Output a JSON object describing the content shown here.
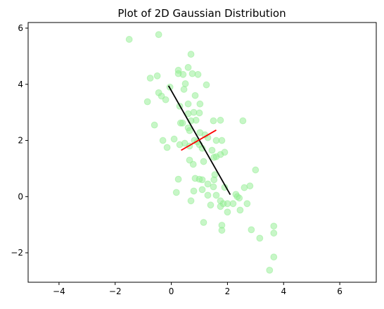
{
  "chart_data": {
    "type": "scatter",
    "title": "Plot of 2D Gaussian Distribution",
    "xlabel": "",
    "ylabel": "",
    "xlim": [
      -5.1,
      7.3
    ],
    "ylim": [
      -3.05,
      6.2
    ],
    "xticks": [
      -4,
      -2,
      0,
      2,
      4,
      6
    ],
    "xtick_labels": [
      "−4",
      "−2",
      "0",
      "2",
      "4",
      "6"
    ],
    "yticks": [
      -2,
      0,
      2,
      4,
      6
    ],
    "ytick_labels": [
      "−2",
      "0",
      "2",
      "4",
      "6"
    ],
    "grid": false,
    "colors": {
      "points": "#90ee90",
      "principal_axis": "#000000",
      "minor_axis": "#ff0000"
    },
    "point_alpha": 0.5,
    "points": [
      [
        -1.5,
        5.6
      ],
      [
        -0.45,
        5.77
      ],
      [
        0.7,
        5.07
      ],
      [
        0.6,
        4.6
      ],
      [
        0.25,
        4.5
      ],
      [
        0.75,
        4.38
      ],
      [
        0.42,
        4.35
      ],
      [
        0.95,
        4.35
      ],
      [
        0.25,
        4.38
      ],
      [
        -0.75,
        4.22
      ],
      [
        -0.5,
        4.3
      ],
      [
        1.25,
        3.98
      ],
      [
        0.5,
        4.02
      ],
      [
        -0.05,
        3.9
      ],
      [
        0.45,
        3.82
      ],
      [
        -0.45,
        3.7
      ],
      [
        -0.35,
        3.58
      ],
      [
        0.85,
        3.6
      ],
      [
        -0.2,
        3.45
      ],
      [
        -0.85,
        3.38
      ],
      [
        0.6,
        3.3
      ],
      [
        0.3,
        3.22
      ],
      [
        1.02,
        3.3
      ],
      [
        0.8,
        3.0
      ],
      [
        1.0,
        2.98
      ],
      [
        0.6,
        2.95
      ],
      [
        0.88,
        2.72
      ],
      [
        0.7,
        2.7
      ],
      [
        1.5,
        2.7
      ],
      [
        1.75,
        2.72
      ],
      [
        2.55,
        2.7
      ],
      [
        -0.6,
        2.55
      ],
      [
        0.33,
        2.62
      ],
      [
        0.4,
        2.62
      ],
      [
        0.6,
        2.45
      ],
      [
        0.65,
        2.35
      ],
      [
        1.02,
        2.28
      ],
      [
        1.2,
        2.2
      ],
      [
        1.3,
        2.1
      ],
      [
        1.6,
        2.0
      ],
      [
        1.8,
        2.0
      ],
      [
        0.1,
        2.05
      ],
      [
        -0.3,
        2.0
      ],
      [
        0.48,
        1.9
      ],
      [
        0.82,
        2.0
      ],
      [
        0.92,
        1.95
      ],
      [
        1.0,
        1.85
      ],
      [
        0.3,
        1.85
      ],
      [
        -0.15,
        1.75
      ],
      [
        0.65,
        1.8
      ],
      [
        1.1,
        1.72
      ],
      [
        1.45,
        1.65
      ],
      [
        1.75,
        1.5
      ],
      [
        1.6,
        1.42
      ],
      [
        1.9,
        1.58
      ],
      [
        1.52,
        1.4
      ],
      [
        0.65,
        1.3
      ],
      [
        0.78,
        1.15
      ],
      [
        1.15,
        1.25
      ],
      [
        1.55,
        0.78
      ],
      [
        0.85,
        0.65
      ],
      [
        1.1,
        0.6
      ],
      [
        1.52,
        0.6
      ],
      [
        1.0,
        0.62
      ],
      [
        0.25,
        0.62
      ],
      [
        1.3,
        0.45
      ],
      [
        1.5,
        0.35
      ],
      [
        1.9,
        0.33
      ],
      [
        2.3,
        0.08
      ],
      [
        2.6,
        0.32
      ],
      [
        2.8,
        0.38
      ],
      [
        3.0,
        0.95
      ],
      [
        1.1,
        0.25
      ],
      [
        0.8,
        0.2
      ],
      [
        0.18,
        0.15
      ],
      [
        1.3,
        0.05
      ],
      [
        1.6,
        0.05
      ],
      [
        2.42,
        -0.05
      ],
      [
        2.35,
        0.0
      ],
      [
        1.75,
        -0.15
      ],
      [
        1.85,
        -0.25
      ],
      [
        2.0,
        -0.25
      ],
      [
        2.2,
        -0.25
      ],
      [
        1.4,
        -0.3
      ],
      [
        1.75,
        -0.35
      ],
      [
        0.7,
        -0.15
      ],
      [
        2.7,
        -0.25
      ],
      [
        2.0,
        -0.55
      ],
      [
        2.45,
        -0.48
      ],
      [
        1.15,
        -0.92
      ],
      [
        1.8,
        -1.02
      ],
      [
        1.8,
        -1.2
      ],
      [
        2.85,
        -1.18
      ],
      [
        3.15,
        -1.48
      ],
      [
        3.65,
        -1.05
      ],
      [
        3.65,
        -1.3
      ],
      [
        3.65,
        -2.15
      ],
      [
        3.5,
        -2.62
      ]
    ],
    "lines": [
      {
        "from": [
          -0.1,
          3.95
        ],
        "to": [
          2.1,
          0.07
        ]
      },
      {
        "from": [
          0.35,
          1.65
        ],
        "to": [
          1.6,
          2.37
        ]
      }
    ]
  }
}
